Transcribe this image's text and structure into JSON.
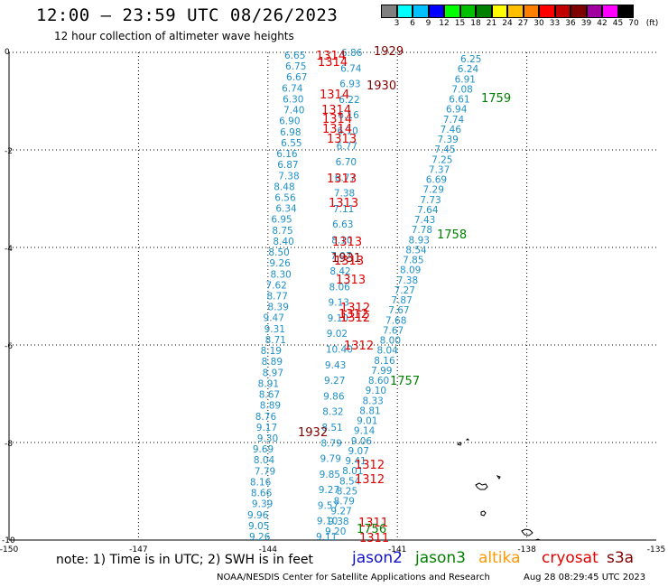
{
  "title": "12:00 — 23:59 UTC 08/26/2023",
  "subtitle": "12 hour collection of altimeter wave heights",
  "note": "note: 1) Time is in UTC; 2) SWH is in feet",
  "credit": "NOAA/NESDIS Center for Satellite Applications and Research",
  "timestamp": "Aug 28 08:29:45 UTC 2023",
  "satellites": [
    {
      "name": "jason2",
      "color": "#1010c8"
    },
    {
      "name": "jason3",
      "color": "#008000"
    },
    {
      "name": "altika",
      "color": "#ff9900"
    },
    {
      "name": "cryosat",
      "color": "#e00000"
    },
    {
      "name": "s3a",
      "color": "#800000"
    }
  ],
  "color_scale": {
    "labels": [
      "3",
      "6",
      "9",
      "12",
      "15",
      "18",
      "21",
      "24",
      "27",
      "30",
      "33",
      "36",
      "39",
      "42",
      "45",
      "70",
      "(ft)"
    ],
    "colors": [
      "#808080",
      "#00ffff",
      "#00c0ff",
      "#0000ff",
      "#00ff00",
      "#00c000",
      "#008000",
      "#ffff00",
      "#ffc000",
      "#ff8000",
      "#ff0000",
      "#c00000",
      "#800000",
      "#a000a0",
      "#ff00ff",
      "#000000"
    ]
  },
  "map": {
    "x_ticks": [
      "-150",
      "-147",
      "-144",
      "-141",
      "-138",
      "-135"
    ],
    "y_ticks": [
      "0",
      "-2",
      "-4",
      "-6",
      "-8",
      "-10"
    ],
    "lon_range": [
      -150,
      -135
    ],
    "lat_range": [
      -10,
      0
    ]
  },
  "tracks": {
    "right_track": {
      "color": "#1e90c8",
      "values": [
        "6.25",
        "6.24",
        "6.91",
        "7.08",
        "6.61",
        "6.94",
        "7.74",
        "7.46",
        "7.39",
        "7.45",
        "7.25",
        "7.37",
        "6.69",
        "7.29",
        "7.73",
        "7.64",
        "7.43",
        "7.78",
        "8.93",
        "8.54",
        "7.85",
        "8.09",
        "7.38",
        "7.27",
        "7.87",
        "7.67",
        "7.68",
        "7.67",
        "8.00",
        "8.04",
        "8.16",
        "7.99",
        "8.60",
        "9.10",
        "8.33",
        "8.81",
        "9.01",
        "9.14",
        "9.06",
        "9.07",
        "9.41",
        "8.01",
        "8.54",
        "8.25",
        "8.79",
        "9.27",
        "9.38",
        "9.20"
      ]
    },
    "left_track": {
      "color": "#1e90c8",
      "values": [
        "6.65",
        "6.75",
        "6.67",
        "6.74",
        "6.30",
        "7.40",
        "6.90",
        "6.98",
        "6.55",
        "6.16",
        "6.87",
        "7.38",
        "8.48",
        "6.56",
        "6.34",
        "6.95",
        "8.75",
        "8.40",
        "8.50",
        "9.26",
        "8.30",
        "7.62",
        "8.77",
        "8.39",
        "9.47",
        "9.31",
        "8.71",
        "8.19",
        "8.89",
        "8.97",
        "8.91",
        "8.67",
        "8.89",
        "8.76",
        "9.17",
        "9.30",
        "9.69",
        "8.04",
        "7.79",
        "8.16",
        "8.66",
        "9.39",
        "9.96",
        "9.05",
        "9.26"
      ]
    },
    "mid_track": {
      "color": "#1e90c8",
      "values": [
        "6.86",
        "6.74",
        "6.93",
        "6.22",
        "6.16",
        "6.10",
        "6.77",
        "6.70",
        "6.77",
        "7.38",
        "7.11",
        "6.63",
        "8.10",
        "7.97",
        "8.42",
        "8.06",
        "9.13",
        "9.10",
        "9.02",
        "10.40",
        "9.43",
        "9.27",
        "9.86",
        "8.32",
        "8.51",
        "8.79",
        "9.79",
        "9.85",
        "9.27",
        "9.57",
        "9.10",
        "9.11"
      ]
    },
    "time_labels": [
      {
        "text": "1314",
        "color": "#e00000"
      },
      {
        "text": "1314",
        "color": "#e00000"
      },
      {
        "text": "1929",
        "color": "#800000"
      },
      {
        "text": "1930",
        "color": "#800000"
      },
      {
        "text": "1759",
        "color": "#008000"
      },
      {
        "text": "1314",
        "color": "#e00000"
      },
      {
        "text": "1314",
        "color": "#e00000"
      },
      {
        "text": "1314",
        "color": "#e00000"
      },
      {
        "text": "1314",
        "color": "#e00000"
      },
      {
        "text": "1313",
        "color": "#e00000"
      },
      {
        "text": "1313",
        "color": "#e00000"
      },
      {
        "text": "1313",
        "color": "#e00000"
      },
      {
        "text": "1758",
        "color": "#008000"
      },
      {
        "text": "1313",
        "color": "#e00000"
      },
      {
        "text": "1931",
        "color": "#800000"
      },
      {
        "text": "1313",
        "color": "#e00000"
      },
      {
        "text": "1313",
        "color": "#e00000"
      },
      {
        "text": "1312",
        "color": "#e00000"
      },
      {
        "text": "1312",
        "color": "#e00000"
      },
      {
        "text": "1312",
        "color": "#e00000"
      },
      {
        "text": "1312",
        "color": "#e00000"
      },
      {
        "text": "1757",
        "color": "#008000"
      },
      {
        "text": "1932",
        "color": "#800000"
      },
      {
        "text": "1312",
        "color": "#e00000"
      },
      {
        "text": "1312",
        "color": "#e00000"
      },
      {
        "text": "1311",
        "color": "#e00000"
      },
      {
        "text": "1756",
        "color": "#008000"
      },
      {
        "text": "1311",
        "color": "#e00000"
      }
    ]
  }
}
